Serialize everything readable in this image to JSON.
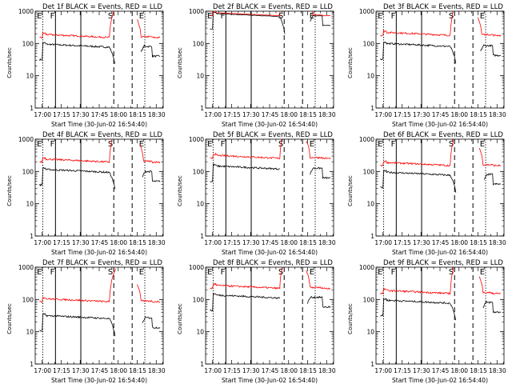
{
  "figure": {
    "xlabel": "Start Time (30-Jun-02 16:54:40)",
    "ylabel": "Counts/sec",
    "x_tick_labels": [
      "17:00",
      "17:15",
      "17:30",
      "17:45",
      "18:00",
      "18:15",
      "18:30"
    ],
    "y_tick_labels": [
      "1",
      "10",
      "100",
      "1000"
    ],
    "marker_labels": [
      "E",
      "F",
      "S",
      "E"
    ],
    "colors": {
      "events": "#000000",
      "lld": "#ff0000",
      "background": "#ffffff"
    }
  },
  "chart_data": [
    {
      "type": "line",
      "title": "Det 1f BLACK = Events, RED = LLD",
      "detector": "1f",
      "xlim_min": [
        -0.5,
        100.5
      ],
      "ylim": [
        1,
        1000
      ],
      "yscale": "log",
      "markers": [
        {
          "label": "E",
          "x_min": 5.5,
          "style": "dotted"
        },
        {
          "label": "F",
          "x_min": 15.5,
          "style": "solid"
        },
        {
          "label": "",
          "x_min": 35.5,
          "style": "solid"
        },
        {
          "label": "S",
          "x_min": 61.5,
          "style": "dashed"
        },
        {
          "label": "",
          "x_min": 76,
          "style": "dashed"
        },
        {
          "label": "E",
          "x_min": 86,
          "style": "dotted"
        }
      ],
      "series": [
        {
          "name": "Events",
          "color": "#000000",
          "level": 90,
          "gap": [
            62.5,
            83
          ]
        },
        {
          "name": "LLD",
          "color": "#ff0000",
          "level": 180,
          "gap": [
            64,
            80
          ]
        }
      ]
    },
    {
      "type": "line",
      "title": "Det 2f BLACK = Events, RED = LLD",
      "detector": "2f",
      "xlim_min": [
        -0.5,
        100.5
      ],
      "ylim": [
        1,
        1000
      ],
      "yscale": "log",
      "markers": [
        {
          "label": "E",
          "x_min": 5.5,
          "style": "dotted"
        },
        {
          "label": "F",
          "x_min": 15.5,
          "style": "solid"
        },
        {
          "label": "",
          "x_min": 35.5,
          "style": "solid"
        },
        {
          "label": "S",
          "x_min": 61.5,
          "style": "dashed"
        },
        {
          "label": "",
          "x_min": 76,
          "style": "dashed"
        },
        {
          "label": "E",
          "x_min": 86,
          "style": "dotted"
        }
      ],
      "series": [
        {
          "name": "Events",
          "color": "#000000",
          "level": 800,
          "gap": [
            62,
            82
          ]
        },
        {
          "name": "LLD",
          "color": "#ff0000",
          "level": 850,
          "gap": [
            62,
            81
          ]
        }
      ]
    },
    {
      "type": "line",
      "title": "Det 3f BLACK = Events, RED = LLD",
      "detector": "3f",
      "xlim_min": [
        -0.5,
        100.5
      ],
      "ylim": [
        1,
        1000
      ],
      "yscale": "log",
      "markers": [
        {
          "label": "E",
          "x_min": 5.5,
          "style": "dotted"
        },
        {
          "label": "F",
          "x_min": 15.5,
          "style": "solid"
        },
        {
          "label": "",
          "x_min": 35.5,
          "style": "solid"
        },
        {
          "label": "S",
          "x_min": 61.5,
          "style": "dashed"
        },
        {
          "label": "",
          "x_min": 76,
          "style": "dashed"
        },
        {
          "label": "E",
          "x_min": 86,
          "style": "dotted"
        }
      ],
      "series": [
        {
          "name": "Events",
          "color": "#000000",
          "level": 95,
          "gap": [
            62.5,
            82
          ]
        },
        {
          "name": "LLD",
          "color": "#ff0000",
          "level": 210,
          "gap": [
            63,
            80
          ]
        }
      ]
    },
    {
      "type": "line",
      "title": "Det 4f BLACK = Events, RED = LLD",
      "detector": "4f",
      "xlim_min": [
        -0.5,
        100.5
      ],
      "ylim": [
        1,
        1000
      ],
      "yscale": "log",
      "markers": [
        {
          "label": "E",
          "x_min": 5.5,
          "style": "dotted"
        },
        {
          "label": "F",
          "x_min": 15.5,
          "style": "solid"
        },
        {
          "label": "",
          "x_min": 35.5,
          "style": "solid"
        },
        {
          "label": "S",
          "x_min": 61.5,
          "style": "dashed"
        },
        {
          "label": "",
          "x_min": 76,
          "style": "dashed"
        },
        {
          "label": "E",
          "x_min": 86,
          "style": "dotted"
        }
      ],
      "series": [
        {
          "name": "Events",
          "color": "#000000",
          "level": 110,
          "gap": [
            62.5,
            84
          ]
        },
        {
          "name": "LLD",
          "color": "#ff0000",
          "level": 230,
          "gap": [
            63,
            82
          ]
        }
      ]
    },
    {
      "type": "line",
      "title": "Det 5f BLACK = Events, RED = LLD",
      "detector": "5f",
      "xlim_min": [
        -0.5,
        100.5
      ],
      "ylim": [
        1,
        1000
      ],
      "yscale": "log",
      "markers": [
        {
          "label": "E",
          "x_min": 5.5,
          "style": "dotted"
        },
        {
          "label": "F",
          "x_min": 15.5,
          "style": "solid"
        },
        {
          "label": "",
          "x_min": 35.5,
          "style": "solid"
        },
        {
          "label": "S",
          "x_min": 61.5,
          "style": "dashed"
        },
        {
          "label": "",
          "x_min": 76,
          "style": "dashed"
        },
        {
          "label": "E",
          "x_min": 86,
          "style": "dotted"
        }
      ],
      "series": [
        {
          "name": "Events",
          "color": "#000000",
          "level": 140,
          "gap": [
            58,
            82
          ]
        },
        {
          "name": "LLD",
          "color": "#ff0000",
          "level": 300,
          "gap": [
            63,
            79
          ]
        }
      ]
    },
    {
      "type": "line",
      "title": "Det 6f BLACK = Events, RED = LLD",
      "detector": "6f",
      "xlim_min": [
        -0.5,
        100.5
      ],
      "ylim": [
        1,
        1000
      ],
      "yscale": "log",
      "markers": [
        {
          "label": "E",
          "x_min": 5.5,
          "style": "dotted"
        },
        {
          "label": "F",
          "x_min": 15.5,
          "style": "solid"
        },
        {
          "label": "",
          "x_min": 35.5,
          "style": "solid"
        },
        {
          "label": "S",
          "x_min": 61.5,
          "style": "dashed"
        },
        {
          "label": "",
          "x_min": 76,
          "style": "dashed"
        },
        {
          "label": "E",
          "x_min": 86,
          "style": "dotted"
        }
      ],
      "series": [
        {
          "name": "Events",
          "color": "#000000",
          "level": 90,
          "gap": [
            62.5,
            85
          ]
        },
        {
          "name": "LLD",
          "color": "#ff0000",
          "level": 180,
          "gap": [
            63,
            81
          ]
        }
      ]
    },
    {
      "type": "line",
      "title": "Det 7f BLACK = Events, RED = LLD",
      "detector": "7f",
      "xlim_min": [
        -0.5,
        100.5
      ],
      "ylim": [
        1,
        1000
      ],
      "yscale": "log",
      "markers": [
        {
          "label": "E",
          "x_min": 5.5,
          "style": "dotted"
        },
        {
          "label": "F",
          "x_min": 15.5,
          "style": "solid"
        },
        {
          "label": "",
          "x_min": 35.5,
          "style": "solid"
        },
        {
          "label": "S",
          "x_min": 61.5,
          "style": "dashed"
        },
        {
          "label": "",
          "x_min": 76,
          "style": "dashed"
        },
        {
          "label": "E",
          "x_min": 86,
          "style": "dotted"
        }
      ],
      "series": [
        {
          "name": "Events",
          "color": "#000000",
          "level": 30,
          "gap": [
            62.5,
            84
          ]
        },
        {
          "name": "LLD",
          "color": "#ff0000",
          "level": 100,
          "gap": [
            63,
            80
          ]
        }
      ]
    },
    {
      "type": "line",
      "title": "Det 8f BLACK = Events, RED = LLD",
      "detector": "8f",
      "xlim_min": [
        -0.5,
        100.5
      ],
      "ylim": [
        1,
        1000
      ],
      "yscale": "log",
      "markers": [
        {
          "label": "E",
          "x_min": 5.5,
          "style": "dotted"
        },
        {
          "label": "F",
          "x_min": 15.5,
          "style": "solid"
        },
        {
          "label": "",
          "x_min": 35.5,
          "style": "solid"
        },
        {
          "label": "S",
          "x_min": 61.5,
          "style": "dashed"
        },
        {
          "label": "",
          "x_min": 76,
          "style": "dashed"
        },
        {
          "label": "E",
          "x_min": 86,
          "style": "dotted"
        }
      ],
      "series": [
        {
          "name": "Events",
          "color": "#000000",
          "level": 130,
          "gap": [
            58,
            80
          ]
        },
        {
          "name": "LLD",
          "color": "#ff0000",
          "level": 260,
          "gap": [
            63,
            79
          ]
        }
      ]
    },
    {
      "type": "line",
      "title": "Det 9f BLACK = Events, RED = LLD",
      "detector": "9f",
      "xlim_min": [
        -0.5,
        100.5
      ],
      "ylim": [
        1,
        1000
      ],
      "yscale": "log",
      "markers": [
        {
          "label": "E",
          "x_min": 5.5,
          "style": "dotted"
        },
        {
          "label": "F",
          "x_min": 15.5,
          "style": "solid"
        },
        {
          "label": "",
          "x_min": 35.5,
          "style": "solid"
        },
        {
          "label": "S",
          "x_min": 61.5,
          "style": "dashed"
        },
        {
          "label": "",
          "x_min": 76,
          "style": "dashed"
        },
        {
          "label": "E",
          "x_min": 86,
          "style": "dotted"
        }
      ],
      "series": [
        {
          "name": "Events",
          "color": "#000000",
          "level": 90,
          "gap": [
            62.5,
            84
          ]
        },
        {
          "name": "LLD",
          "color": "#ff0000",
          "level": 180,
          "gap": [
            63,
            81
          ]
        }
      ]
    }
  ]
}
